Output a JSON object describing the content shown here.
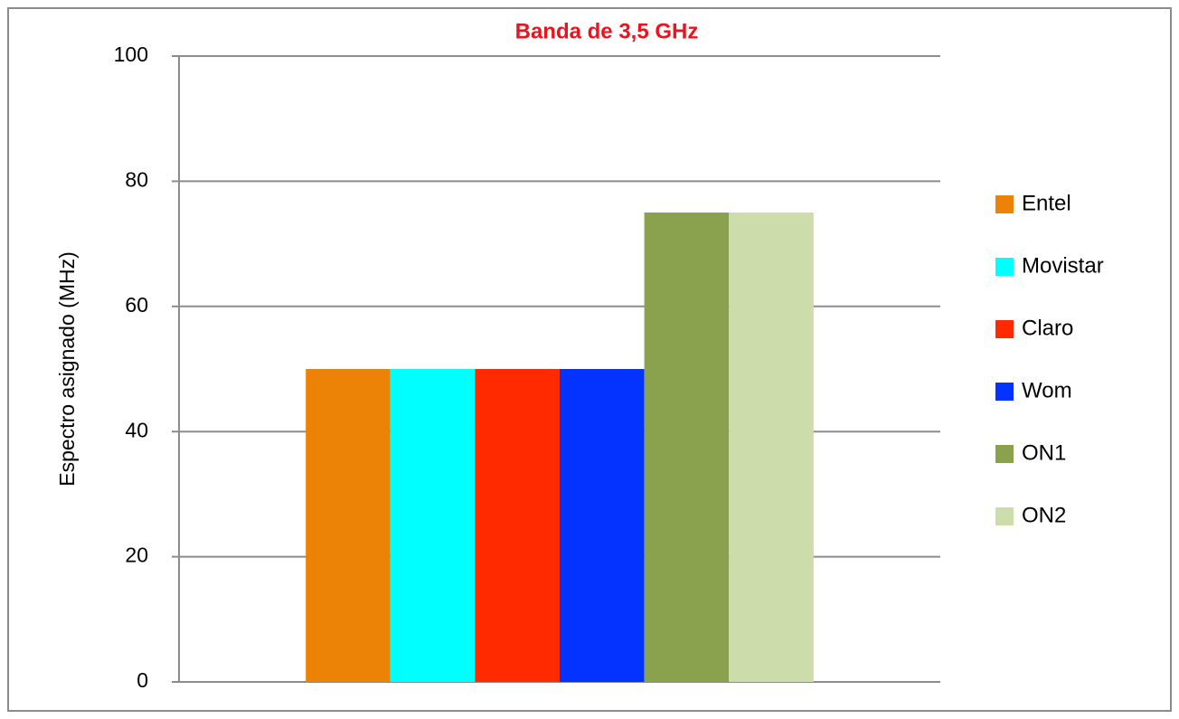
{
  "chart_data": {
    "type": "bar",
    "title": "Banda de 3,5 GHz",
    "y_label": "Espectro asignado (MHz)",
    "categories": [
      null
    ],
    "series": [
      {
        "name": "Entel",
        "color": "#ec8306",
        "values": [
          50
        ]
      },
      {
        "name": "Movistar",
        "color": "#00ffff",
        "values": [
          50
        ]
      },
      {
        "name": "Claro",
        "color": "#ff2a00",
        "values": [
          50
        ]
      },
      {
        "name": "Wom",
        "color": "#0433ff",
        "values": [
          50
        ]
      },
      {
        "name": "ON1",
        "color": "#8aa24e",
        "values": [
          75
        ]
      },
      {
        "name": "ON2",
        "color": "#ccdcab",
        "values": [
          75
        ]
      }
    ],
    "ylim": [
      0,
      100
    ],
    "yticks": [
      0,
      20,
      40,
      60,
      80,
      100
    ],
    "grid": true,
    "legend": "right"
  }
}
